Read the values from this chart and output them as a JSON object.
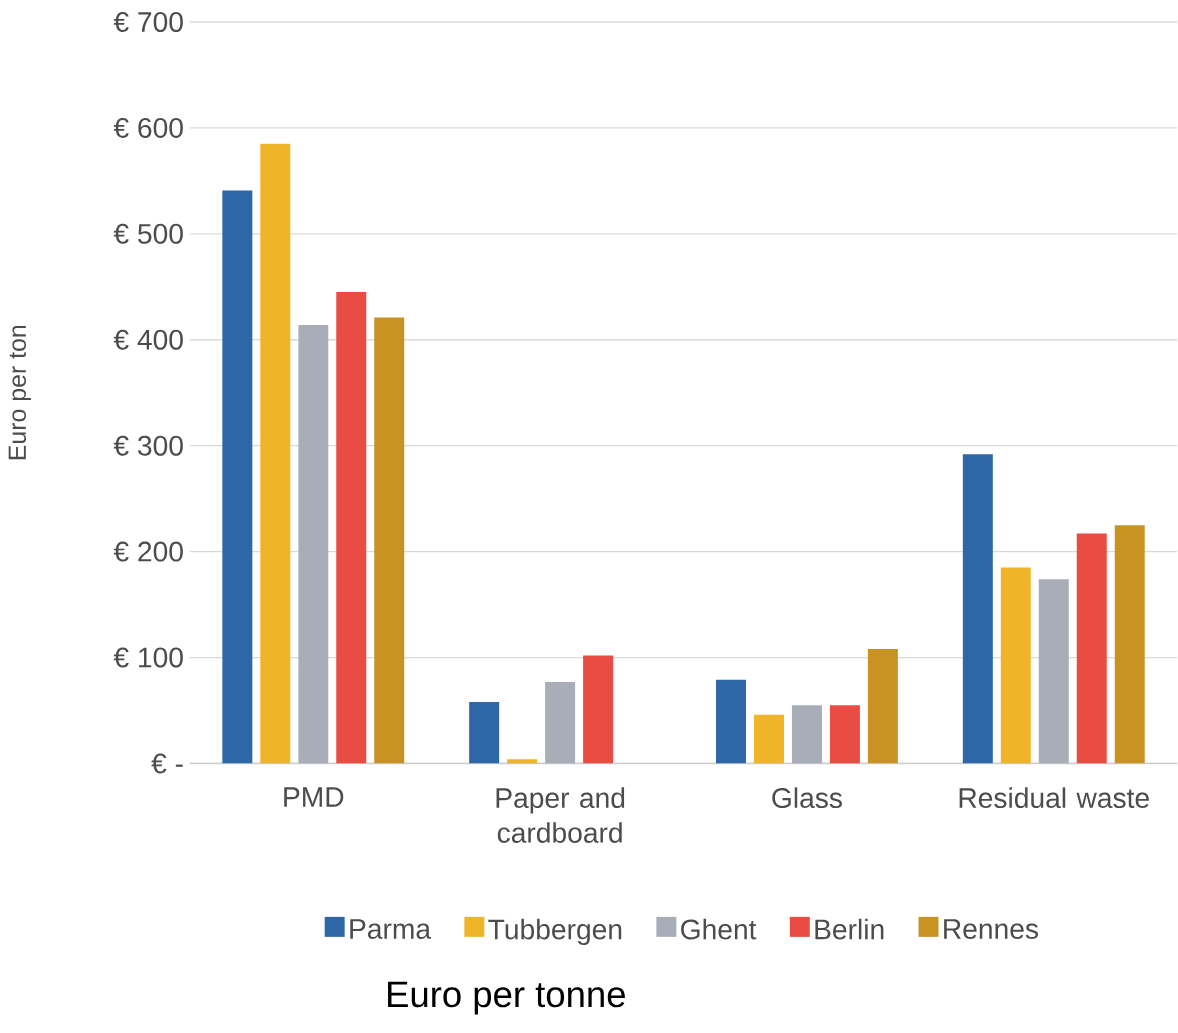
{
  "chart_data": {
    "type": "bar",
    "title": "Euro per tonne",
    "ylabel": "Euro per ton",
    "categories": [
      "PMD",
      "Paper and cardboard",
      "Glass",
      "Residual waste"
    ],
    "series": [
      {
        "name": "Parma",
        "color": "#2e67a8",
        "values": [
          541,
          58,
          79,
          292
        ]
      },
      {
        "name": "Tubbergen",
        "color": "#f0b429",
        "values": [
          585,
          4,
          46,
          185
        ]
      },
      {
        "name": "Ghent",
        "color": "#a8adb8",
        "values": [
          414,
          77,
          55,
          174
        ]
      },
      {
        "name": "Berlin",
        "color": "#e84c42",
        "values": [
          445,
          102,
          55,
          217
        ]
      },
      {
        "name": "Rennes",
        "color": "#c89322",
        "values": [
          421,
          null,
          108,
          225
        ]
      }
    ],
    "ylim": [
      0,
      700
    ],
    "yticks": [
      {
        "value": 0,
        "label": "€ -"
      },
      {
        "value": 100,
        "label": "€ 100"
      },
      {
        "value": 200,
        "label": "€ 200"
      },
      {
        "value": 300,
        "label": "€ 300"
      },
      {
        "value": 400,
        "label": "€ 400"
      },
      {
        "value": 500,
        "label": "€ 500"
      },
      {
        "value": 600,
        "label": "€ 600"
      },
      {
        "value": 700,
        "label": "€ 700"
      }
    ],
    "grid": "y",
    "legend": "bottom"
  }
}
